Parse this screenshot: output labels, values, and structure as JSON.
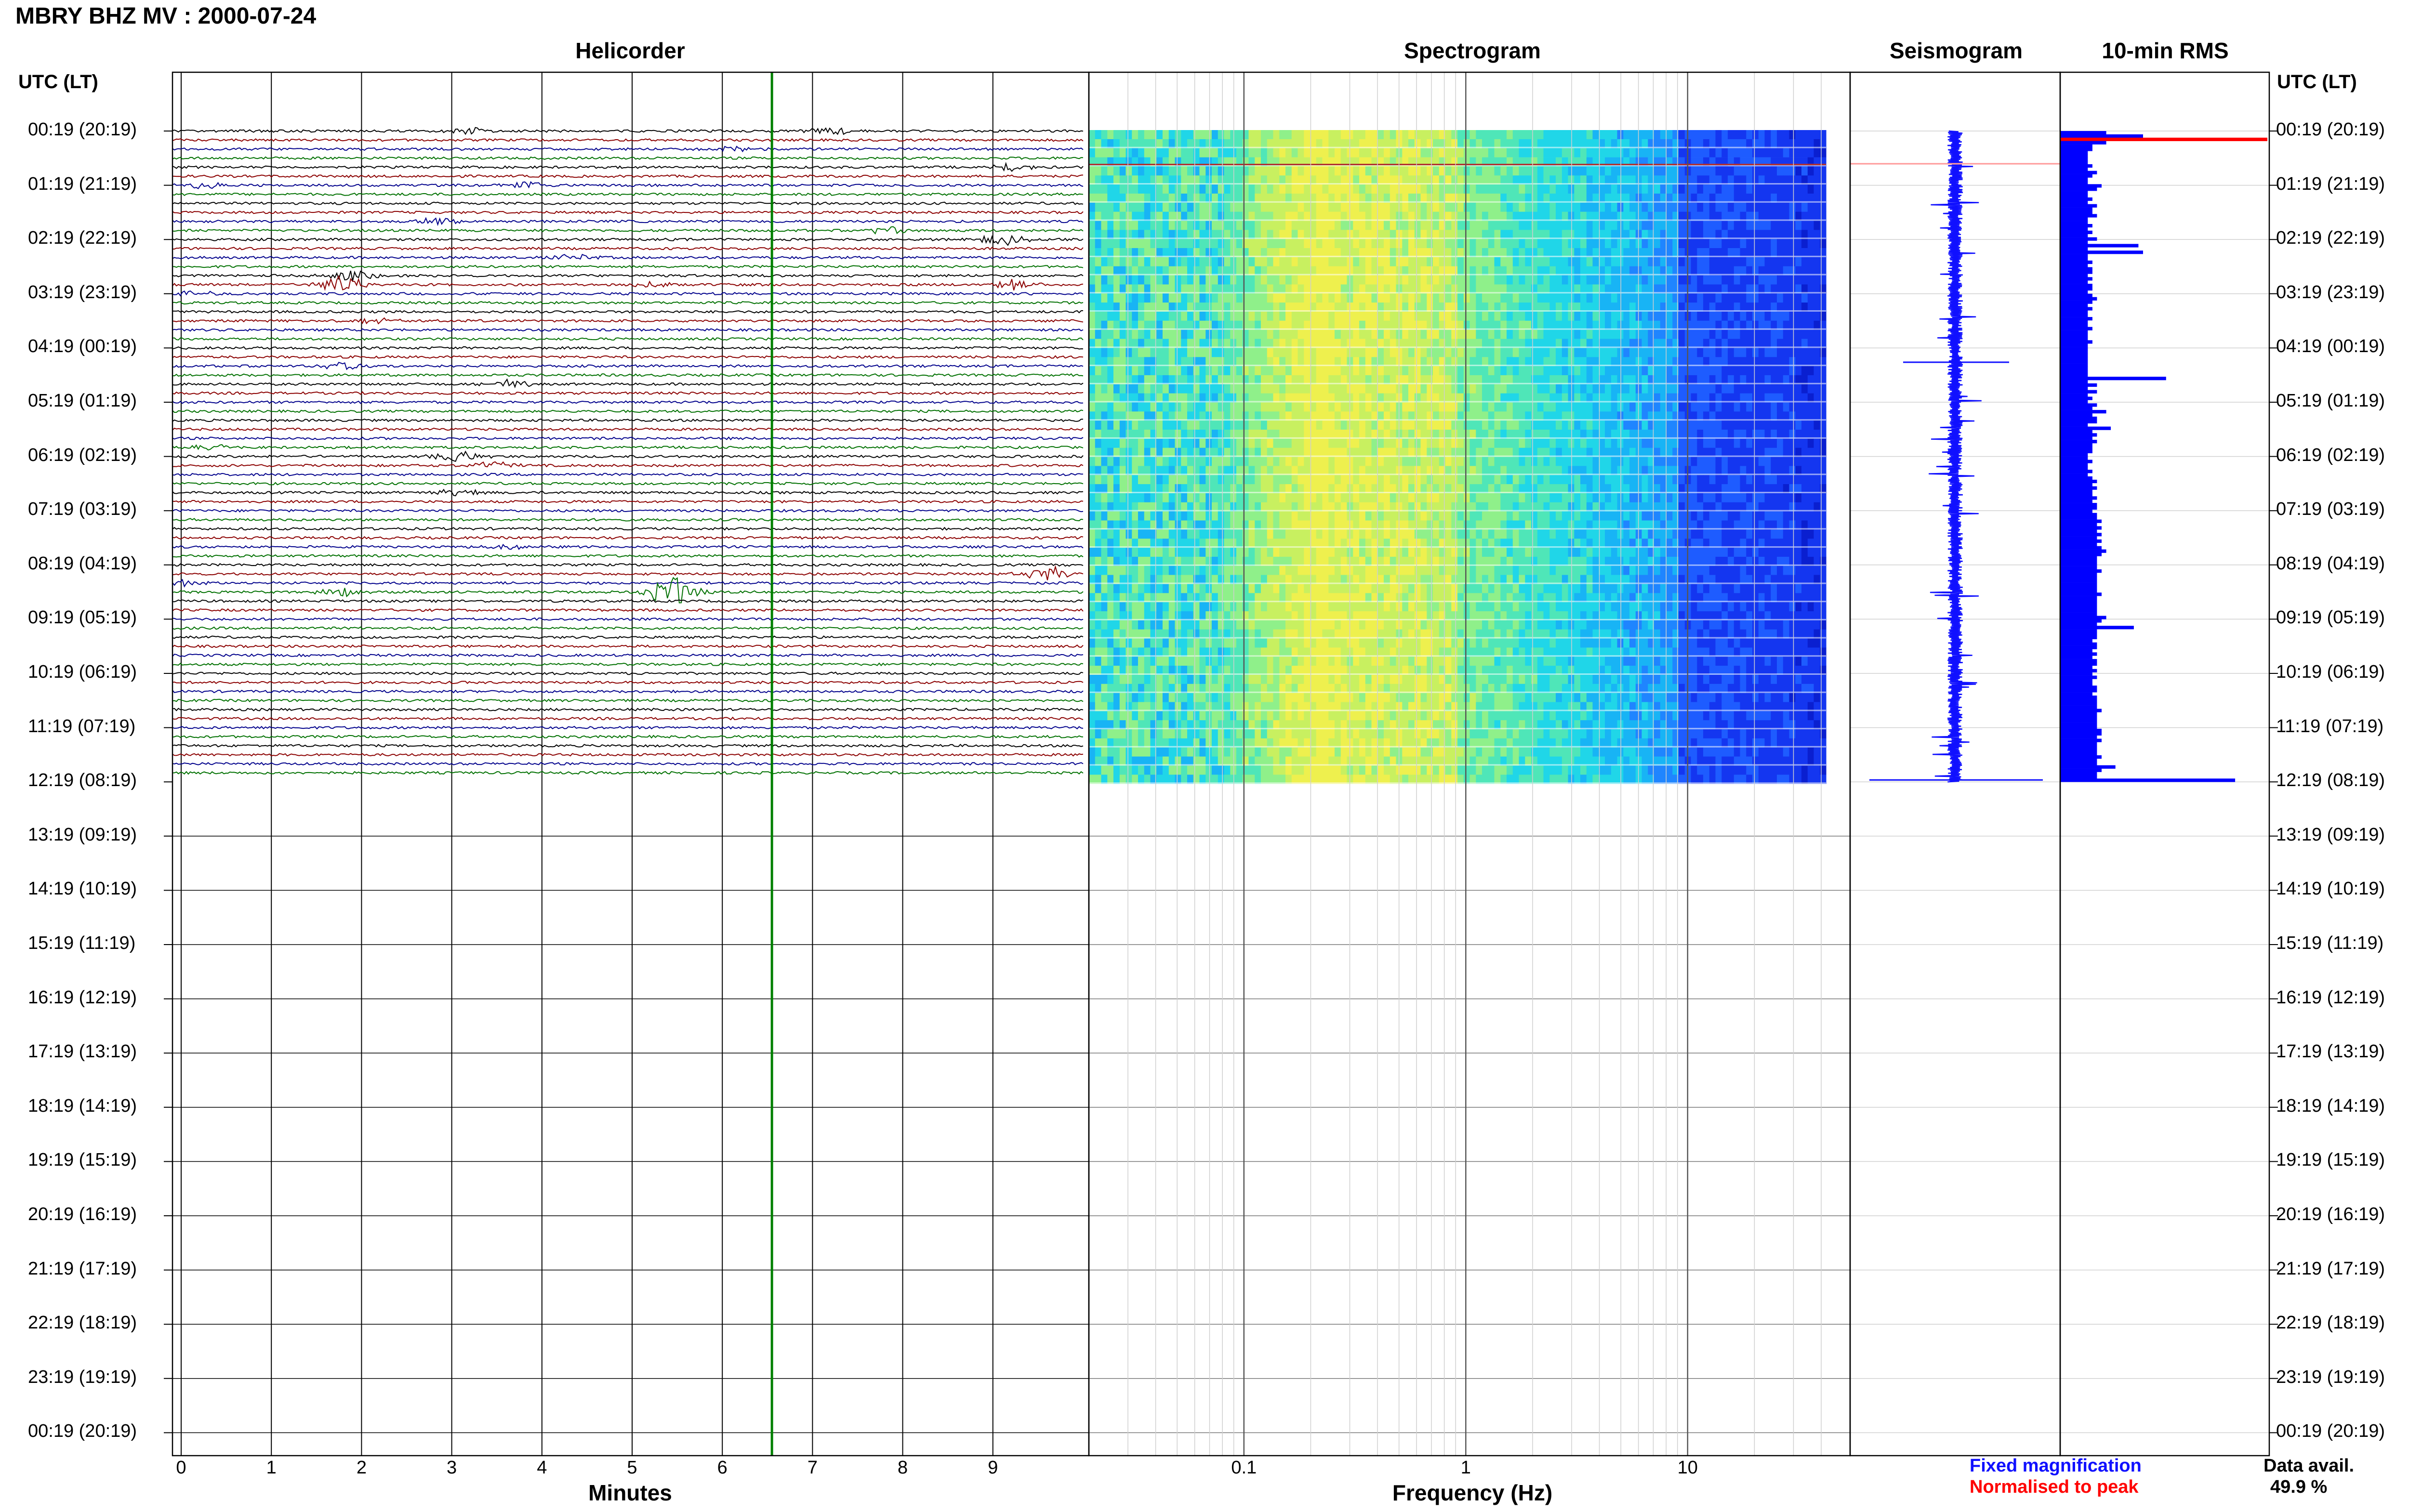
{
  "header": {
    "title": "MBRY BHZ MV : 2000-07-24"
  },
  "panels": {
    "helicorder": "Helicorder",
    "spectrogram": "Spectrogram",
    "seismogram": "Seismogram",
    "rms": "10-min RMS"
  },
  "axis": {
    "utc_header_left": "UTC (LT)",
    "utc_header_right": "UTC (LT)",
    "minutes_label": "Minutes",
    "frequency_label": "Frequency (Hz)",
    "minute_ticks": [
      "0",
      "1",
      "2",
      "3",
      "4",
      "5",
      "6",
      "7",
      "8",
      "9"
    ],
    "frequency_ticks": [
      "0.1",
      "1",
      "10"
    ]
  },
  "legend": {
    "fixed": "Fixed magnification",
    "normalised": "Normalised to peak",
    "fixed_color": "#1010ff",
    "normalised_color": "#ff0000"
  },
  "data_avail": {
    "label": "Data avail.",
    "value": "49.9 %"
  },
  "colors": {
    "trace_palette": [
      "#000000",
      "#8b0000",
      "#00008b",
      "#007000"
    ],
    "marker_line": "#008000",
    "rms_bar": "#0000ff",
    "rms_peak": "#ff0000"
  },
  "chart_data": {
    "type": "helicorder",
    "time_labels": [
      "00:19 (20:19)",
      "01:19 (21:19)",
      "02:19 (22:19)",
      "03:19 (23:19)",
      "04:19 (00:19)",
      "05:19 (01:19)",
      "06:19 (02:19)",
      "07:19 (03:19)",
      "08:19 (04:19)",
      "09:19 (05:19)",
      "10:19 (06:19)",
      "11:19 (07:19)",
      "12:19 (08:19)",
      "13:19 (09:19)",
      "14:19 (10:19)",
      "15:19 (11:19)",
      "16:19 (12:19)",
      "17:19 (13:19)",
      "18:19 (14:19)",
      "19:19 (15:19)",
      "20:19 (16:19)",
      "21:19 (17:19)",
      "22:19 (18:19)",
      "23:19 (19:19)",
      "00:19 (20:19)"
    ],
    "minutes_range": [
      0,
      10
    ],
    "frequency_range_hz": [
      0.02,
      40
    ],
    "frequency_scale": "log",
    "marker_minute": 6.55,
    "data_hours": 12,
    "traces_per_hour": 6,
    "events": [
      {
        "line": 0,
        "minute": 3.3,
        "amp": 2.5
      },
      {
        "line": 0,
        "minute": 7.4,
        "amp": 3.0
      },
      {
        "line": 2,
        "minute": 6.3,
        "amp": 2.2
      },
      {
        "line": 4,
        "minute": 9.4,
        "amp": 3.0
      },
      {
        "line": 6,
        "minute": 0.3,
        "amp": 2.2
      },
      {
        "line": 6,
        "minute": 4.0,
        "amp": 2.0
      },
      {
        "line": 10,
        "minute": 3.0,
        "amp": 2.5
      },
      {
        "line": 11,
        "minute": 8.0,
        "amp": 2.6
      },
      {
        "line": 12,
        "minute": 9.3,
        "amp": 3.5
      },
      {
        "line": 14,
        "minute": 4.5,
        "amp": 2.0
      },
      {
        "line": 16,
        "minute": 2.0,
        "amp": 4.0
      },
      {
        "line": 17,
        "minute": 1.9,
        "amp": 6.0
      },
      {
        "line": 17,
        "minute": 5.3,
        "amp": 2.2
      },
      {
        "line": 17,
        "minute": 9.4,
        "amp": 3.5
      },
      {
        "line": 18,
        "minute": 0.2,
        "amp": 2.2
      },
      {
        "line": 21,
        "minute": 2.3,
        "amp": 2.0
      },
      {
        "line": 26,
        "minute": 1.9,
        "amp": 3.0
      },
      {
        "line": 28,
        "minute": 3.8,
        "amp": 2.8
      },
      {
        "line": 35,
        "minute": 0.5,
        "amp": 2.0
      },
      {
        "line": 36,
        "minute": 3.2,
        "amp": 4.0
      },
      {
        "line": 37,
        "minute": 3.6,
        "amp": 2.5
      },
      {
        "line": 40,
        "minute": 3.2,
        "amp": 3.0
      },
      {
        "line": 46,
        "minute": 3.7,
        "amp": 2.0
      },
      {
        "line": 49,
        "minute": 9.8,
        "amp": 5.0
      },
      {
        "line": 50,
        "minute": 0.1,
        "amp": 2.0
      },
      {
        "line": 51,
        "minute": 1.9,
        "amp": 2.8
      },
      {
        "line": 51,
        "minute": 5.6,
        "amp": 10.0
      }
    ],
    "rms_values": [
      1.0,
      1.8,
      4.5,
      1.0,
      0.7,
      0.7,
      0.6,
      0.6,
      0.6,
      0.6,
      0.7,
      0.6,
      0.8,
      0.7,
      0.6,
      0.6,
      0.9,
      0.8,
      0.6,
      0.6,
      0.7,
      0.6,
      0.8,
      0.7,
      0.7,
      0.8,
      0.6,
      0.6,
      0.7,
      0.6,
      0.7,
      0.6,
      0.8,
      0.6,
      1.7,
      0.6,
      1.8,
      0.6,
      0.6,
      0.7,
      0.6,
      0.7,
      0.7,
      0.6,
      0.7,
      0.6,
      0.7,
      0.7,
      0.6,
      0.7,
      0.8,
      0.7,
      0.6,
      0.7,
      0.6,
      0.6,
      0.7,
      0.6,
      0.6,
      0.7,
      0.6,
      0.6,
      0.6,
      0.7,
      0.6,
      0.6,
      0.6,
      0.6,
      0.6,
      0.6,
      0.6,
      0.6,
      0.6,
      0.6,
      2.3,
      0.6,
      0.8,
      0.6,
      0.8,
      0.6,
      0.7,
      0.6,
      0.8,
      0.7,
      1.0,
      0.7,
      0.8,
      0.8,
      0.6,
      1.1,
      0.7,
      0.8,
      0.7,
      0.8,
      0.7,
      0.7,
      0.7,
      0.6,
      0.6,
      0.7,
      0.6,
      0.6,
      0.7,
      0.6,
      0.7,
      0.8,
      0.7,
      0.8,
      0.7,
      0.7,
      0.8,
      0.7,
      0.8,
      0.8,
      0.7,
      0.8,
      0.8,
      0.9,
      0.8,
      0.9,
      0.8,
      0.9,
      0.8,
      0.9,
      0.8,
      0.9,
      1.0,
      0.9,
      0.8,
      0.8,
      0.8,
      0.8,
      0.9,
      0.8,
      0.8,
      0.8,
      0.8,
      0.8,
      0.8,
      0.9,
      0.8,
      0.8,
      0.8,
      0.8,
      0.8,
      0.8,
      1.0,
      0.9,
      0.8,
      1.6,
      0.8,
      0.8,
      0.8,
      0.7,
      0.8,
      0.8,
      0.7,
      0.8,
      0.7,
      0.8,
      0.8,
      0.7,
      0.8,
      0.7,
      0.8,
      0.7,
      0.7,
      0.8,
      0.8,
      0.7,
      0.8,
      0.8,
      0.8,
      0.8,
      0.9,
      0.8,
      0.8,
      0.8,
      0.8,
      0.8,
      0.9,
      0.9,
      0.8,
      0.9,
      0.8,
      0.8,
      0.8,
      0.8,
      0.9,
      0.8,
      0.8,
      1.2,
      0.9,
      0.8,
      0.8,
      3.8
    ],
    "rms_peak_index": 2
  }
}
